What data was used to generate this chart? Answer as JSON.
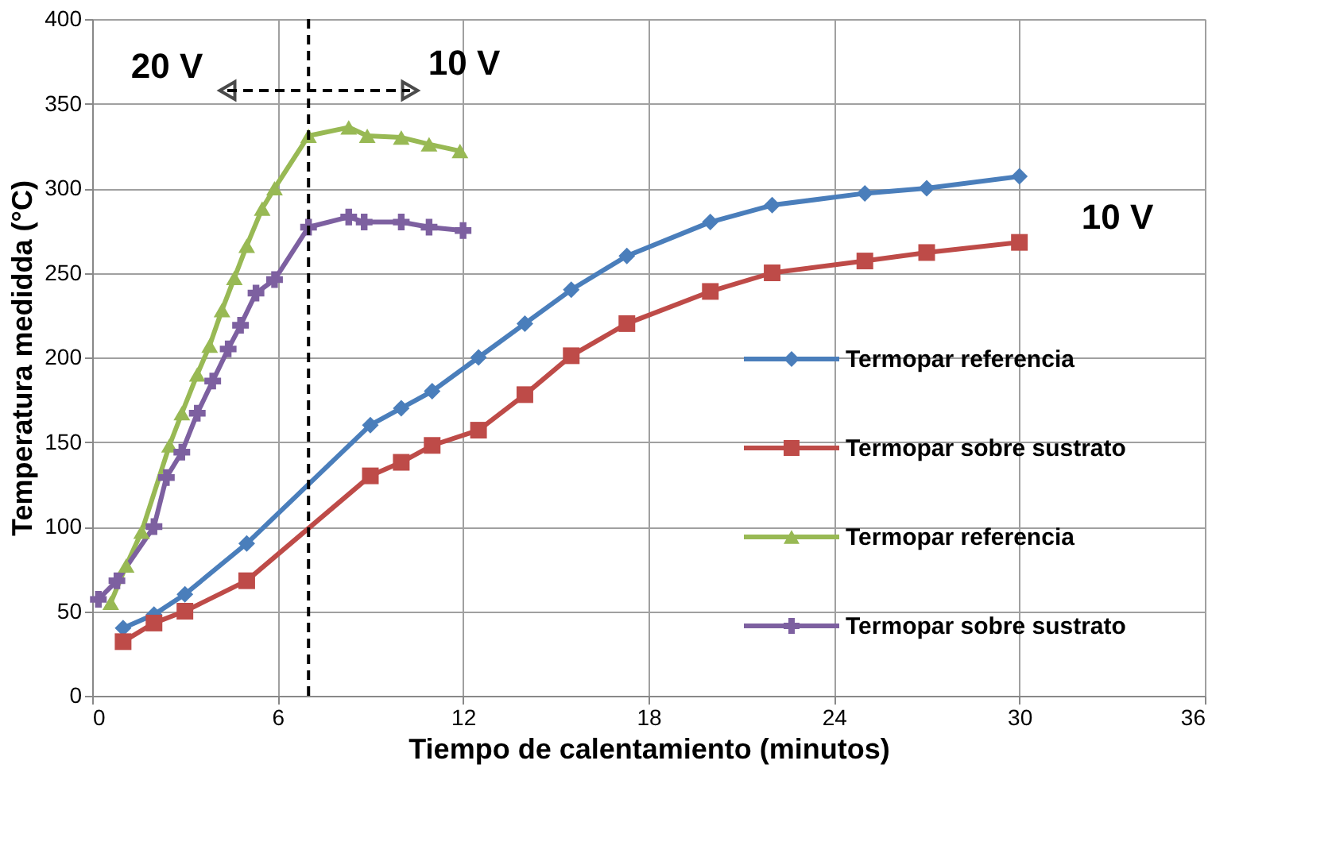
{
  "chart_data": {
    "type": "line",
    "xlabel": "Tiempo de calentamiento (minutos)",
    "ylabel": "Temperatura medidda (°C)",
    "xlim": [
      0,
      36
    ],
    "xticks": [
      0,
      6,
      12,
      18,
      24,
      30,
      36
    ],
    "ylim": [
      0,
      400
    ],
    "yticks": [
      0,
      50,
      100,
      150,
      200,
      250,
      300,
      350,
      400
    ],
    "grid": true,
    "legend": "right",
    "line_style": "solid",
    "series": [
      {
        "name": "Termopar referencia",
        "color": "#4a7ebb",
        "marker": "diamond",
        "x": [
          1,
          2,
          3,
          5,
          9,
          10,
          11,
          12.5,
          14,
          15.5,
          17.3,
          20,
          22,
          25,
          27,
          30
        ],
        "values": [
          40,
          48,
          60,
          90,
          160,
          170,
          180,
          200,
          220,
          240,
          260,
          280,
          290,
          297,
          300,
          307
        ]
      },
      {
        "name": "Termopar sobre sustrato",
        "color": "#be4b48",
        "marker": "square",
        "x": [
          1,
          2,
          3,
          5,
          9,
          10,
          11,
          12.5,
          14,
          15.5,
          17.3,
          20,
          22,
          25,
          27,
          30
        ],
        "values": [
          32,
          43,
          50,
          68,
          130,
          138,
          148,
          157,
          178,
          201,
          220,
          239,
          250,
          257,
          262,
          268
        ]
      },
      {
        "name": "Termopar referencia",
        "color": "#98b954",
        "marker": "triangle",
        "x": [
          0.6,
          1.1,
          1.6,
          2.5,
          2.9,
          3.4,
          3.8,
          4.2,
          4.6,
          5,
          5.5,
          5.9,
          7,
          8.3,
          8.9,
          10,
          10.9,
          11.9
        ],
        "values": [
          55,
          77,
          97,
          148,
          167,
          190,
          207,
          228,
          247,
          266,
          288,
          300,
          331,
          336,
          331,
          330,
          326,
          322
        ]
      },
      {
        "name": "Termopar sobre sustrato",
        "color": "#7d60a0",
        "marker": "cross",
        "x": [
          0.2,
          0.8,
          2,
          2.4,
          2.9,
          3.4,
          3.9,
          4.4,
          4.8,
          5.3,
          5.9,
          7,
          8.3,
          8.8,
          10,
          10.9,
          12
        ],
        "values": [
          57,
          68,
          100,
          129,
          144,
          167,
          186,
          205,
          219,
          238,
          246,
          277,
          283,
          280,
          280,
          277,
          275
        ]
      }
    ],
    "ref_lines": [
      {
        "axis": "x",
        "value": 7,
        "color": "#000000",
        "line_style": "dashed"
      }
    ],
    "annotations": [
      "20 V",
      "10 V",
      "10 V"
    ]
  }
}
